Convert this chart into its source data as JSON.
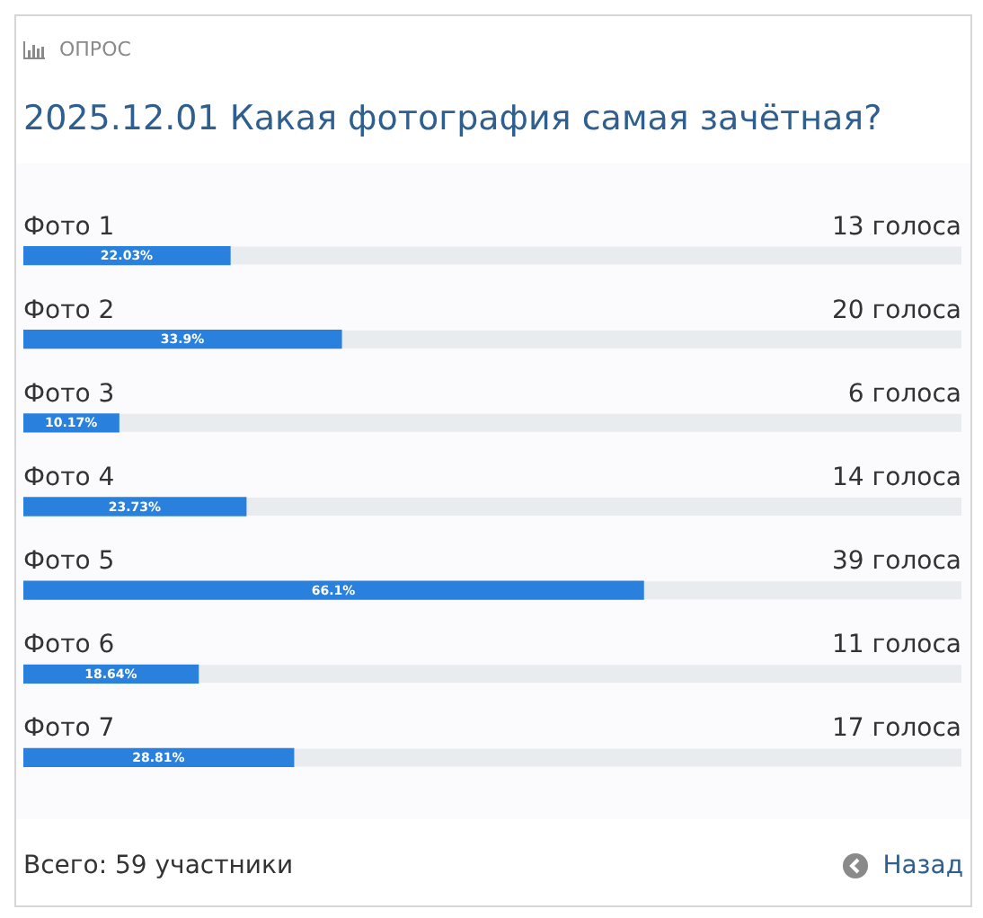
{
  "chart_data": {
    "type": "bar",
    "orientation": "horizontal",
    "subtitle": "ОПРОС",
    "title": "2025.12.01 Какая фотография самая зачётная?",
    "categories": [
      "Фото 1",
      "Фото 2",
      "Фото 3",
      "Фото 4",
      "Фото 5",
      "Фото 6",
      "Фото 7"
    ],
    "values": [
      22.03,
      33.9,
      10.17,
      23.73,
      66.1,
      18.64,
      28.81
    ],
    "value_labels": [
      "22.03%",
      "33.9%",
      "10.17%",
      "23.73%",
      "66.1%",
      "18.64%",
      "28.81%"
    ],
    "color": "#2a80dd",
    "xlim": [
      0,
      100
    ],
    "legend": false,
    "annotations": [
      "13 голоса",
      "20 голоса",
      "6 голоса",
      "14 голоса",
      "39 голоса",
      "11 голоса",
      "17 голоса",
      "Всего: 59 участники",
      "Назад"
    ]
  }
}
